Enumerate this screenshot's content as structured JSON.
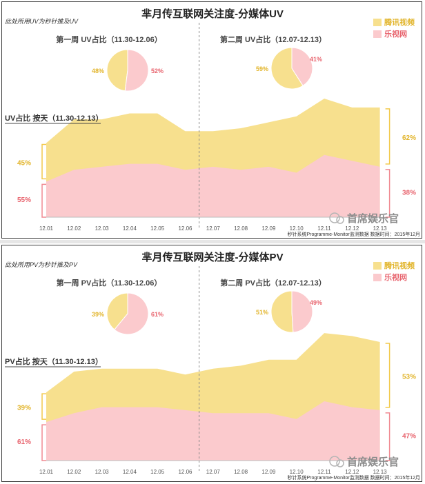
{
  "colors": {
    "tencent": "#f7e08e",
    "letv": "#fbcacd",
    "tencent_text": "#e2b52c",
    "letv_text": "#e8656f",
    "bracket_tencent": "#f2c94c",
    "bracket_letv": "#f08a92",
    "axis": "#555555",
    "title": "#222222"
  },
  "legend": [
    {
      "name": "腾讯视频",
      "color": "#f7e08e",
      "text_color": "#e2b52c"
    },
    {
      "name": "乐视网",
      "color": "#fbcacd",
      "text_color": "#e8656f"
    }
  ],
  "watermark": "首席娱乐官",
  "chart_data": [
    {
      "type": "area",
      "title": "芈月传互联网关注度-分媒体UV",
      "note": "此处所用UV为秒针推及UV",
      "section_label": "UV占比 按天（11.30-12.13）",
      "footer": "秒针系统Programme-Monitor监测数据 数据时间：2015年12月",
      "x": [
        "12.01",
        "12.02",
        "12.03",
        "12.04",
        "12.05",
        "12.06",
        "12.07",
        "12.08",
        "12.09",
        "12.10",
        "12.11",
        "12.12",
        "12.13"
      ],
      "stacked": true,
      "series": [
        {
          "name": "乐视网",
          "values": [
            12,
            16,
            17,
            18,
            18,
            16,
            17,
            16,
            17,
            15,
            21,
            19,
            17
          ]
        },
        {
          "name": "腾讯视频",
          "values": [
            13,
            17,
            16,
            17,
            17,
            13,
            12,
            14,
            15,
            19,
            19,
            18,
            20
          ]
        }
      ],
      "left_bracket_labels": {
        "tencent": "45%",
        "letv": "55%"
      },
      "right_bracket_labels": {
        "tencent": "62%",
        "letv": "38%"
      },
      "pies": [
        {
          "title": "第一周 UV占比（11.30-12.06）",
          "tencent": 48,
          "letv": 52,
          "tencent_label": "48%",
          "letv_label": "52%"
        },
        {
          "title": "第二周 UV占比（12.07-12.13）",
          "tencent": 59,
          "letv": 41,
          "tencent_label": "59%",
          "letv_label": "41%"
        }
      ]
    },
    {
      "type": "area",
      "title": "芈月传互联网关注度-分媒体PV",
      "note": "此处所用PV为秒针推及PV",
      "section_label": "PV占比 按天（11.30-12.13）",
      "footer": "秒针系统Programme-Monitor监测数据 数据时间：2015年12月",
      "x": [
        "12.01",
        "12.02",
        "12.03",
        "12.04",
        "12.05",
        "12.06",
        "12.07",
        "12.08",
        "12.09",
        "12.10",
        "12.11",
        "12.12",
        "12.13"
      ],
      "stacked": true,
      "series": [
        {
          "name": "乐视网",
          "values": [
            13,
            16,
            18,
            18,
            18,
            17,
            16,
            16,
            16,
            14,
            20,
            18,
            17
          ]
        },
        {
          "name": "腾讯视频",
          "values": [
            10,
            14,
            13,
            13,
            13,
            12,
            15,
            16,
            18,
            20,
            23,
            24,
            23
          ]
        }
      ],
      "left_bracket_labels": {
        "tencent": "39%",
        "letv": "61%"
      },
      "right_bracket_labels": {
        "tencent": "53%",
        "letv": "47%"
      },
      "pies": [
        {
          "title": "第一周 PV占比（11.30-12.06）",
          "tencent": 39,
          "letv": 61,
          "tencent_label": "39%",
          "letv_label": "61%"
        },
        {
          "title": "第二周 PV占比（12.07-12.13）",
          "tencent": 51,
          "letv": 49,
          "tencent_label": "51%",
          "letv_label": "49%"
        }
      ]
    }
  ]
}
